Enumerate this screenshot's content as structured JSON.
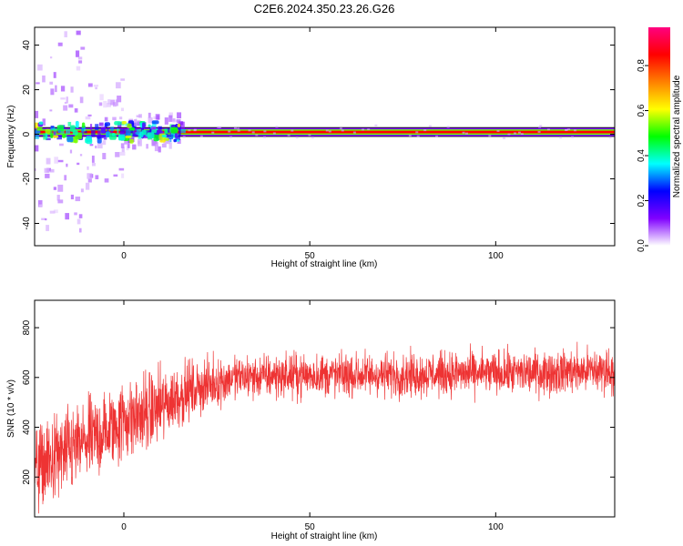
{
  "figure_title": "C2E6.2024.350.23.26.G26",
  "chart_data": [
    {
      "type": "heatmap",
      "title": "C2E6.2024.350.23.26.G26",
      "xlabel": "Height of straight line (km)",
      "ylabel": "Frequency (Hz)",
      "xlim": [
        -24,
        132
      ],
      "ylim": [
        -50,
        48
      ],
      "xticks": [
        0,
        50,
        100
      ],
      "yticks": [
        -40,
        -20,
        0,
        20,
        40
      ],
      "colorbar": {
        "label": "Normalized spectral amplitude",
        "range": [
          0,
          0.97
        ],
        "ticks": [
          "0.0",
          "0.2",
          "0.4",
          "0.6",
          "0.8"
        ],
        "tick_values": [
          0,
          0.2,
          0.4,
          0.6,
          0.8
        ],
        "colormap": [
          "#ffffff",
          "#8000ff",
          "#0000ff",
          "#00ffff",
          "#00ff00",
          "#ffff00",
          "#ff8000",
          "#ff0000",
          "#ff0080"
        ]
      },
      "dominant_frequency_hz": 1,
      "band_halfwidth_hz": 2,
      "noisy_region_km": [
        -24,
        16
      ],
      "grid": false
    },
    {
      "type": "line",
      "xlabel": "Height of straight line (km)",
      "ylabel": "SNR (10 * v/v)",
      "xlim": [
        -24,
        132
      ],
      "ylim": [
        40,
        910
      ],
      "xticks": [
        0,
        50,
        100
      ],
      "yticks": [
        200,
        400,
        600,
        800
      ],
      "color": "#ee3333",
      "trend": {
        "x": [
          -24,
          -15,
          -5,
          0,
          5,
          10,
          15,
          20,
          30,
          50,
          70,
          90,
          110,
          132
        ],
        "mean": [
          230,
          300,
          380,
          430,
          450,
          480,
          530,
          560,
          600,
          610,
          610,
          615,
          620,
          630
        ],
        "spread": [
          180,
          180,
          170,
          170,
          170,
          160,
          130,
          110,
          90,
          90,
          90,
          90,
          90,
          95
        ]
      },
      "grid": false
    }
  ]
}
